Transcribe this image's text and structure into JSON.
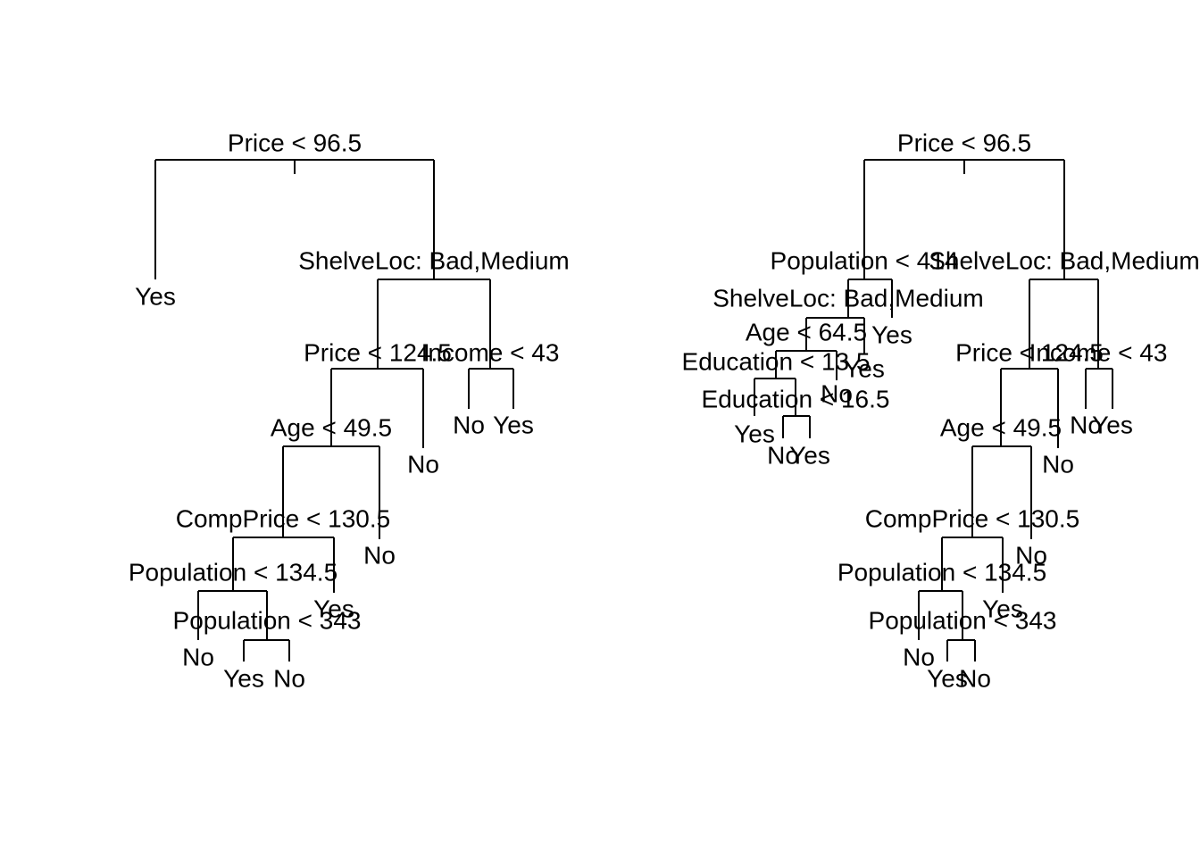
{
  "trees": [
    {
      "nodes": [
        "Price < 96.5",
        "Yes",
        "ShelveLoc: Bad,Medium",
        "Price < 124.5",
        "Income < 43",
        "No",
        "Yes",
        "Age < 49.5",
        "No",
        "CompPrice < 130.5",
        "No",
        "Population < 134.5",
        "Yes",
        "No",
        "Population < 343",
        "Yes",
        "No"
      ]
    },
    {
      "nodes": [
        "Price < 96.5",
        "Population < 414",
        "ShelveLoc: Bad,Medium",
        "ShelveLoc: Bad,Medium",
        "Yes",
        "Age < 64.5",
        "Yes",
        "Education < 13.5",
        "No",
        "Education < 16.5",
        "Yes",
        "No",
        "Yes",
        "Price < 124.5",
        "Income < 43",
        "No",
        "Yes",
        "Age < 49.5",
        "No",
        "CompPrice < 130.5",
        "No",
        "Population < 134.5",
        "Yes",
        "No",
        "Population < 343",
        "Yes",
        "No"
      ]
    }
  ]
}
